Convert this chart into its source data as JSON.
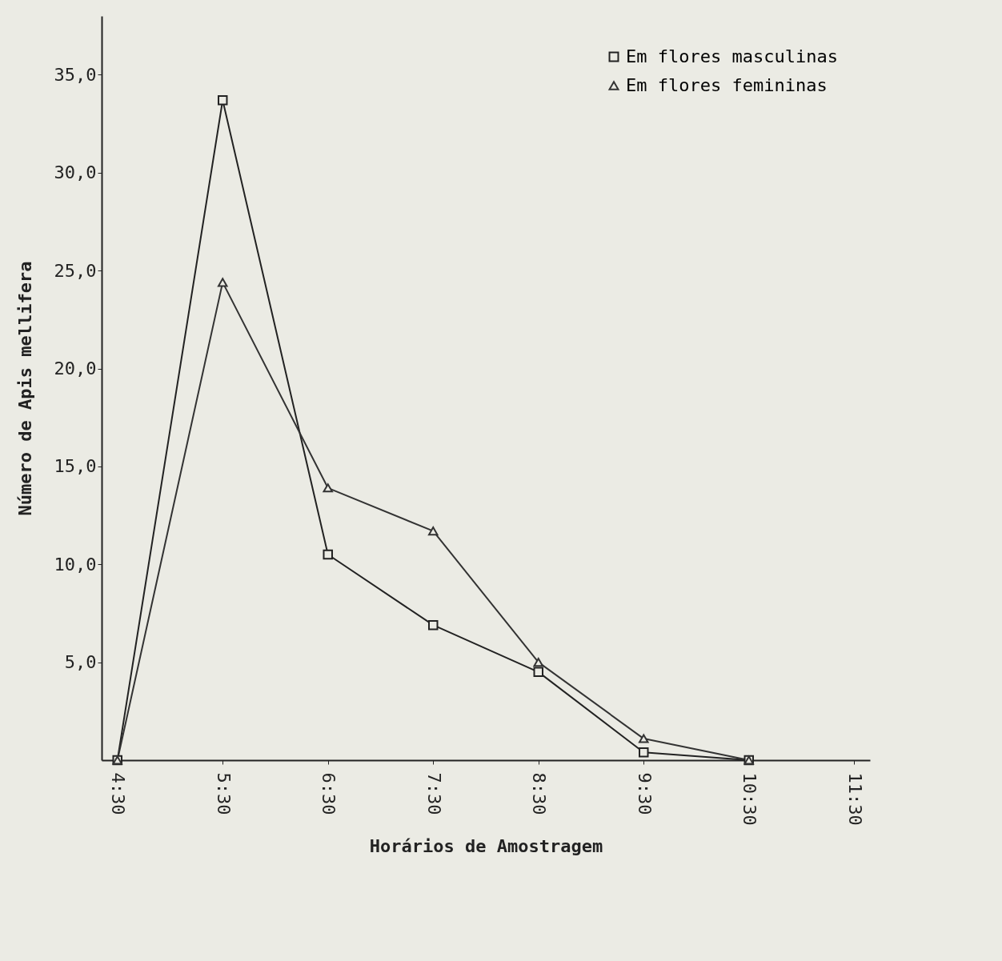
{
  "chart_data": {
    "type": "line",
    "xlabel": "Horários de Amostragem",
    "ylabel": "Número de Apis mellifera",
    "categories": [
      "4:30",
      "5:30",
      "6:30",
      "7:30",
      "8:30",
      "9:30",
      "10:30",
      "11:30"
    ],
    "series": [
      {
        "name": "Em flores masculinas",
        "color": "#222222",
        "marker": "square",
        "values": [
          0,
          33.7,
          10.5,
          6.9,
          4.5,
          0.4,
          0,
          null
        ]
      },
      {
        "name": "Em flores femininas",
        "color": "#333333",
        "marker": "triangle",
        "values": [
          0,
          24.4,
          13.9,
          11.7,
          5.0,
          1.1,
          0,
          null
        ]
      }
    ],
    "ylim": [
      0,
      38
    ],
    "yticks": [
      {
        "value": 5,
        "label": "5,0"
      },
      {
        "value": 10,
        "label": "10,0"
      },
      {
        "value": 15,
        "label": "15,0"
      },
      {
        "value": 20,
        "label": "20,0"
      },
      {
        "value": 25,
        "label": "25,0"
      },
      {
        "value": 30,
        "label": "30,0"
      },
      {
        "value": 35,
        "label": "35,0"
      }
    ],
    "grid": false,
    "legend": "top right",
    "line_style": "solid"
  }
}
